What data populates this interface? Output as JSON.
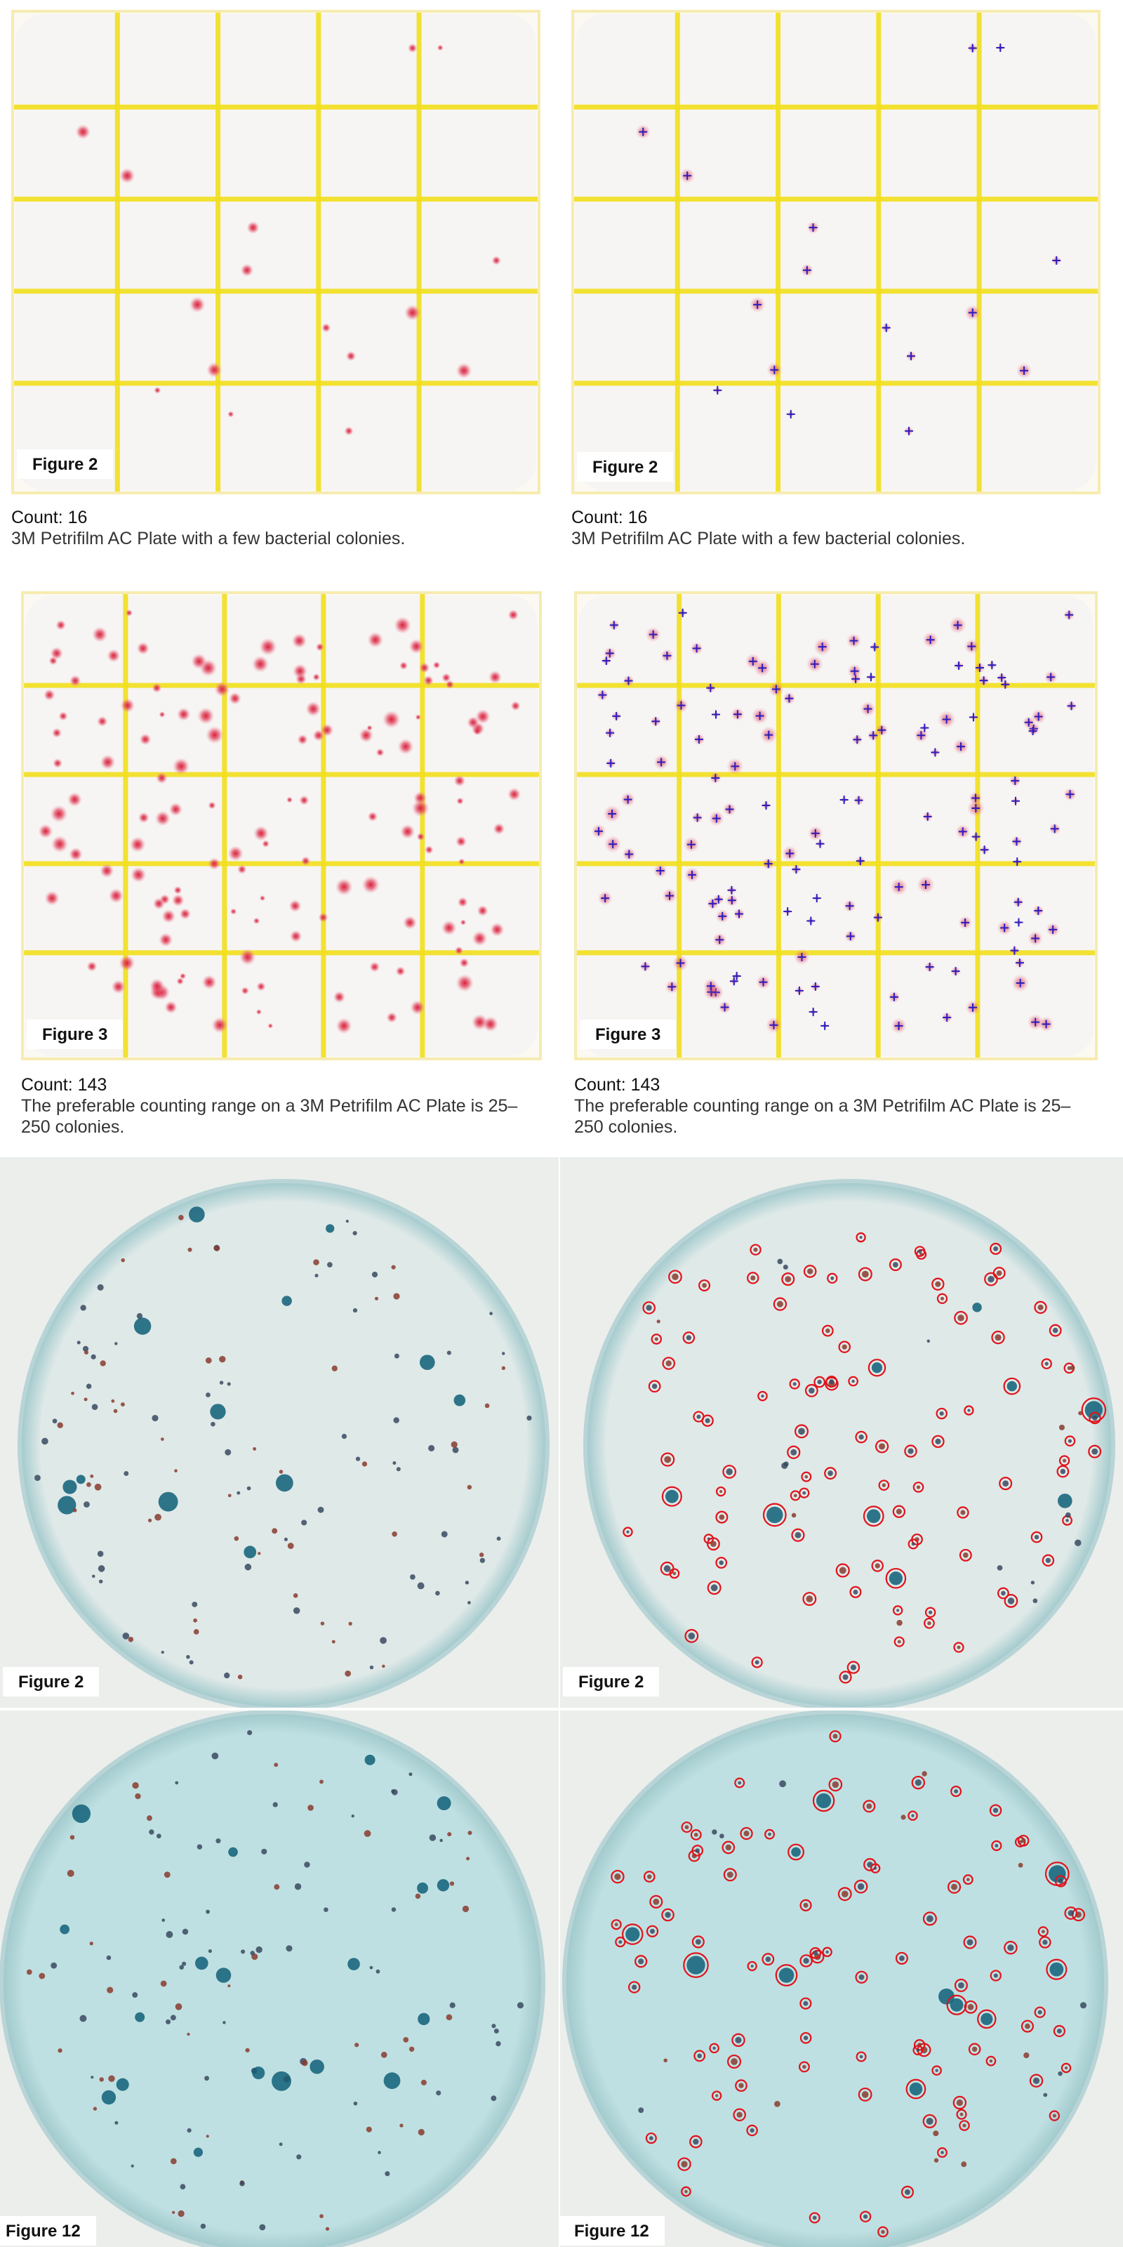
{
  "panels": [
    {
      "id": "petrifilm-fig2-original",
      "figure_label": "Figure 2",
      "count_text": "Count: 16",
      "description": "3M Petrifilm AC Plate with a few bacterial colonies.",
      "colony_color": "#d8203a",
      "grid_color": "#f2df1c"
    },
    {
      "id": "petrifilm-fig2-annotated",
      "figure_label": "Figure 2",
      "count_text": "Count: 16",
      "description": "3M Petrifilm AC Plate with a few bacterial colonies.",
      "marker_color": "#2a1fbf",
      "grid_color": "#f2df1c"
    },
    {
      "id": "petrifilm-fig3-original",
      "figure_label": "Figure 3",
      "count_text": "Count: 143",
      "description": "The preferable counting range on a 3M Petrifilm AC Plate is 25–250 colonies.",
      "colony_color": "#d8203a",
      "grid_color": "#f2df1c"
    },
    {
      "id": "petrifilm-fig3-annotated",
      "figure_label": "Figure 3",
      "count_text": "Count: 143",
      "description": "The preferable counting range on a 3M Petrifilm AC Plate is 25–250 colonies.",
      "marker_color": "#2a1fbf",
      "grid_color": "#f2df1c"
    },
    {
      "id": "dish-fig2-original",
      "figure_label": "Figure 2",
      "plate_color": "#dfe9e8"
    },
    {
      "id": "dish-fig2-annotated",
      "figure_label": "Figure 2",
      "plate_color": "#dfe9e8",
      "marker_color": "#e2121a"
    },
    {
      "id": "dish-fig12-original",
      "figure_label": "Figure 12",
      "plate_color": "#bfe0e2"
    },
    {
      "id": "dish-fig12-annotated",
      "figure_label": "Figure 12",
      "plate_color": "#bfe0e2",
      "marker_color": "#e2121a"
    }
  ]
}
